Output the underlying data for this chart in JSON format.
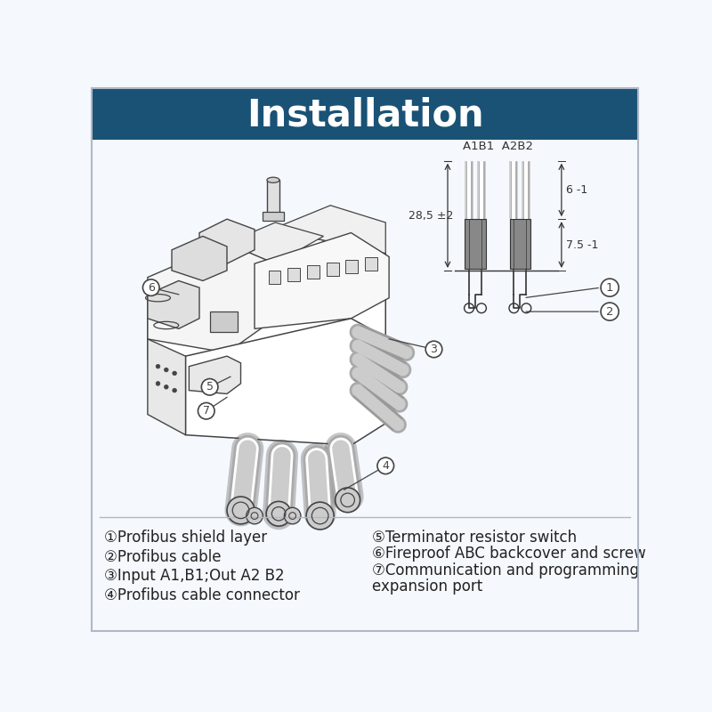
{
  "title": "Installation",
  "title_bg_color": "#1a5276",
  "title_text_color": "#ffffff",
  "title_fontsize": 30,
  "bg_color": "#f5f8fc",
  "border_color": "#b0b8c8",
  "legend_left": [
    "①Profibus shield layer",
    "②Profibus cable",
    "③Input A1,B1;Out A2 B2",
    "④Profibus cable connector"
  ],
  "legend_right": [
    "⑤Terminator resistor switch",
    "⑥Fireproof ABC backcover and screw",
    "⑦Communication and programming",
    "expansion port"
  ],
  "dim_top_label": "A1B1  A2B2",
  "dim_left": "28,5 ±2",
  "dim_right1": "6 -1",
  "dim_right2": "7.5 -1",
  "lc": "#444444",
  "dc": "#333333",
  "gray1": "#888888",
  "gray2": "#aaaaaa",
  "gray3": "#cccccc"
}
